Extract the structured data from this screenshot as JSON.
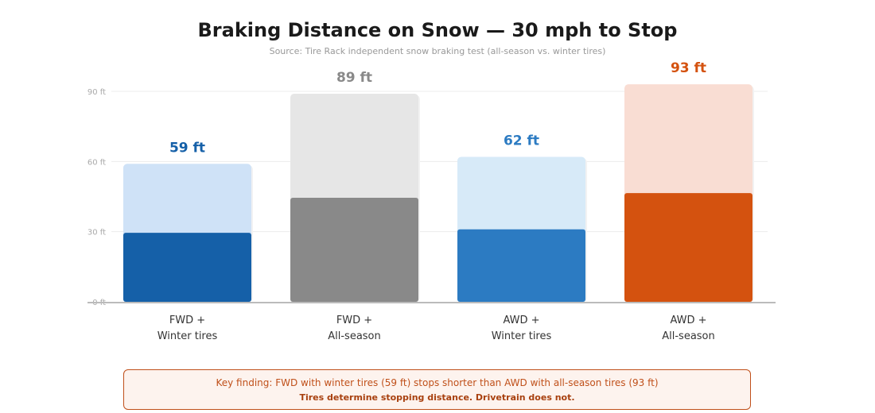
{
  "header": {
    "title": "Braking Distance on Snow — 30 mph to Stop",
    "subtitle": "Source: Tire Rack independent snow braking test (all-season vs. winter tires)"
  },
  "chart_data": {
    "type": "bar",
    "title": "Braking Distance on Snow — 30 mph to Stop",
    "xlabel": "",
    "ylabel": "",
    "ylim": [
      0,
      90
    ],
    "yticks": [
      "0 ft",
      "30 ft",
      "60 ft",
      "90 ft"
    ],
    "ytick_values": [
      0,
      30,
      60,
      90
    ],
    "grid": true,
    "categories": [
      {
        "line1": "FWD +",
        "line2": "Winter tires"
      },
      {
        "line1": "FWD +",
        "line2": "All-season"
      },
      {
        "line1": "AWD +",
        "line2": "Winter tires"
      },
      {
        "line1": "AWD +",
        "line2": "All-season"
      }
    ],
    "values": [
      59,
      89,
      62,
      93
    ],
    "value_labels": [
      "59 ft",
      "89 ft",
      "62 ft",
      "93 ft"
    ],
    "colors": {
      "dark": [
        "#1560a8",
        "#898989",
        "#2c7bc2",
        "#d4520f"
      ],
      "light": [
        "#cfe2f7",
        "#e6e6e6",
        "#d7eaf8",
        "#f9ddd3"
      ],
      "label": [
        "#1560a8",
        "#898989",
        "#2c7bc2",
        "#d4520f"
      ]
    }
  },
  "callout": {
    "line1": "Key finding: FWD with winter tires (59 ft) stops shorter than AWD with all-season tires (93 ft)",
    "line2": "Tires determine stopping distance. Drivetrain does not."
  }
}
